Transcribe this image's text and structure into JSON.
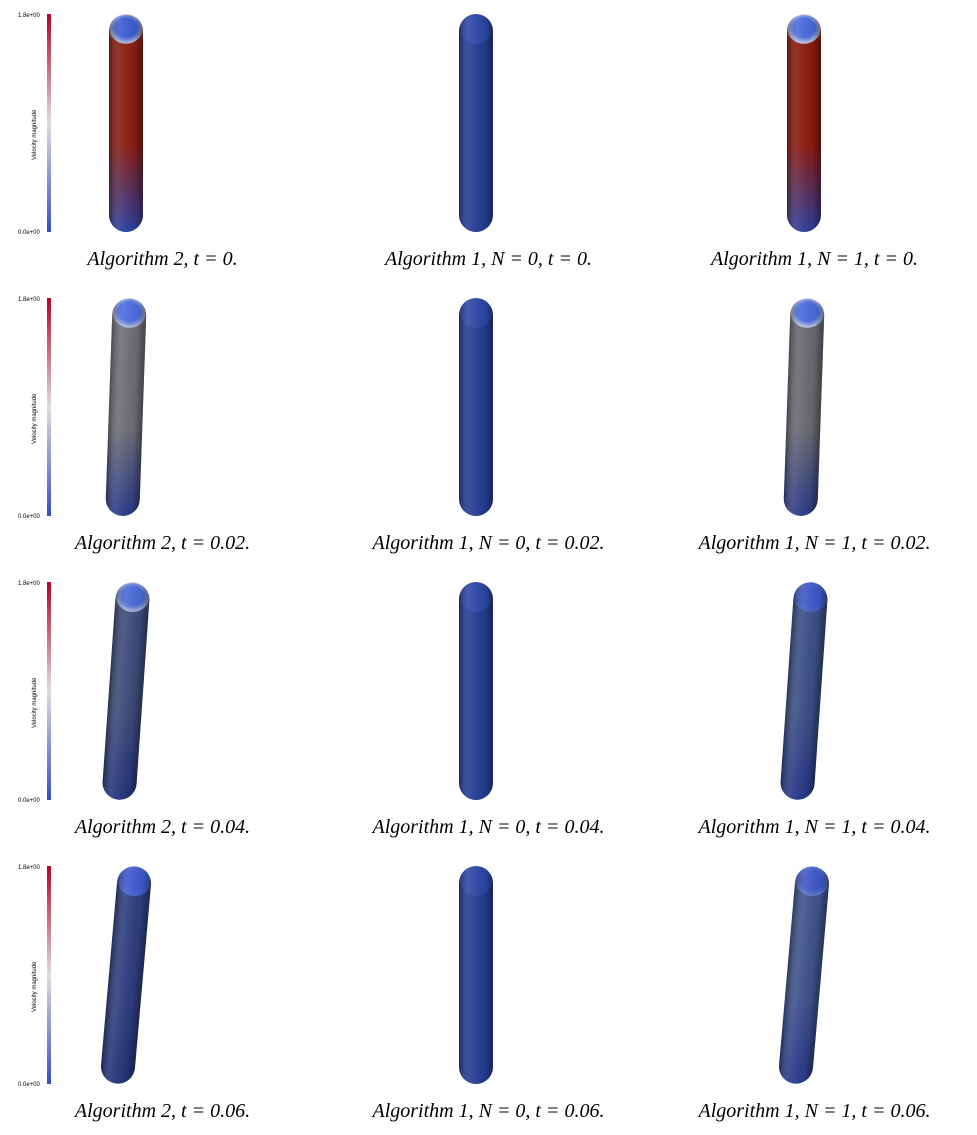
{
  "colorbar": {
    "title": "Velocity magnitude",
    "max_label": "1.8e+00",
    "min_label": "0.0e+00",
    "colors": [
      "#3b4cc0",
      "#dddddd",
      "#b40426"
    ]
  },
  "rows": [
    {
      "t": "0",
      "panels": [
        {
          "caption": "Algorithm 2, t = 0.",
          "head": "#3e5fd6",
          "cap": "#dcdcdc",
          "body": "#8b1e12",
          "base": "#2a3fa0",
          "tilt": 0
        },
        {
          "caption": "Algorithm 1, N = 0, t = 0.",
          "head": "#2f48a8",
          "cap": "#2f48a8",
          "body": "#253d94",
          "base": "#253d94",
          "tilt": 0
        },
        {
          "caption": "Algorithm 1, N = 1, t = 0.",
          "head": "#4a6ddc",
          "cap": "#ececec",
          "body": "#8d1a10",
          "base": "#2c3f9c",
          "tilt": 0
        }
      ]
    },
    {
      "t": "0.02",
      "panels": [
        {
          "caption": "Algorithm 2, t = 0.02.",
          "head": "#4c6ee0",
          "cap": "#d8d8e0",
          "body": "#6e6e76",
          "base": "#2a3a8a",
          "tilt": 2
        },
        {
          "caption": "Algorithm 1, N = 0, t = 0.02.",
          "head": "#2f48a8",
          "cap": "#2f48a8",
          "body": "#253d94",
          "base": "#253d94",
          "tilt": 0
        },
        {
          "caption": "Algorithm 1, N = 1, t = 0.02.",
          "head": "#4a6ddc",
          "cap": "#e6e6ee",
          "body": "#6a6a72",
          "base": "#2c3b88",
          "tilt": 2
        }
      ]
    },
    {
      "t": "0.04",
      "panels": [
        {
          "caption": "Algorithm 2, t = 0.04.",
          "head": "#4a6ad8",
          "cap": "#c9cde0",
          "body": "#3d4c7a",
          "base": "#26357e",
          "tilt": 4
        },
        {
          "caption": "Algorithm 1, N = 0, t = 0.04.",
          "head": "#2f48a8",
          "cap": "#2f48a8",
          "body": "#253d94",
          "base": "#253d94",
          "tilt": 0
        },
        {
          "caption": "Algorithm 1, N = 1, t = 0.04.",
          "head": "#3e58c8",
          "cap": "#4a62c8",
          "body": "#3c4f86",
          "base": "#28388a",
          "tilt": 4
        }
      ]
    },
    {
      "t": "0.06",
      "panels": [
        {
          "caption": "Algorithm 2, t = 0.06.",
          "head": "#3e5ad0",
          "cap": "#4b66cf",
          "body": "#2f3f80",
          "base": "#25347a",
          "tilt": 5
        },
        {
          "caption": "Algorithm 1, N = 0, t = 0.06.",
          "head": "#2f48a8",
          "cap": "#2f48a8",
          "body": "#253d94",
          "base": "#253d94",
          "tilt": 0
        },
        {
          "caption": "Algorithm 1, N = 1, t = 0.06.",
          "head": "#3e58c8",
          "cap": "#6a7fd0",
          "body": "#40538c",
          "base": "#2a3b8c",
          "tilt": 5
        }
      ]
    }
  ]
}
